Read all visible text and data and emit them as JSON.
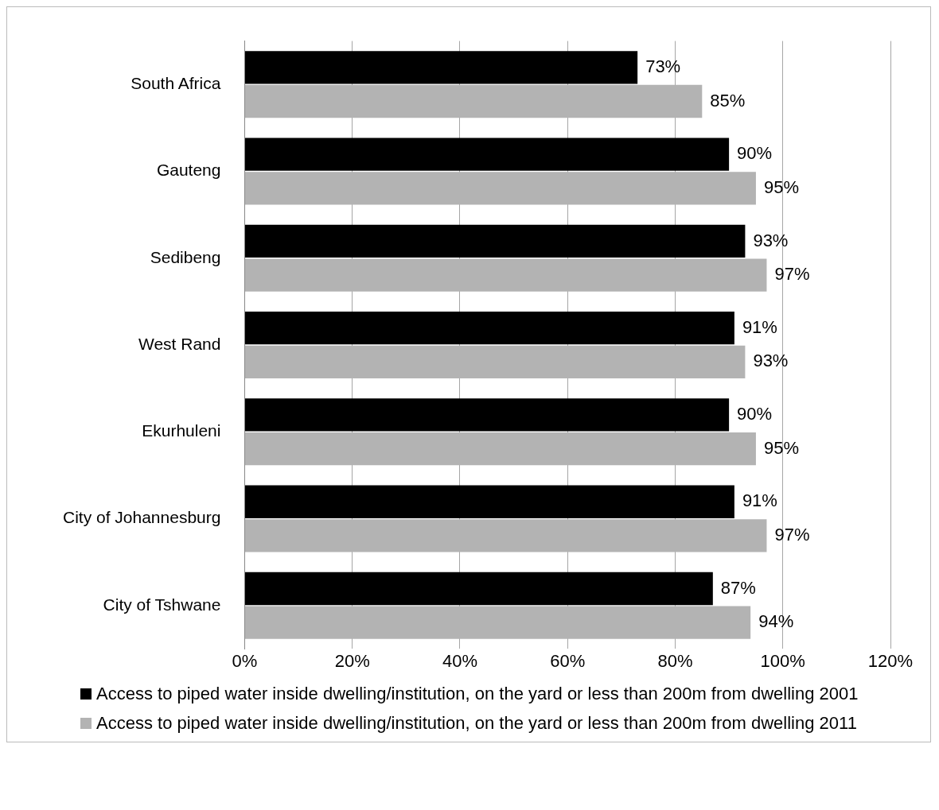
{
  "chart_data": {
    "type": "bar",
    "orientation": "horizontal",
    "categories": [
      "South Africa",
      "Gauteng",
      "Sedibeng",
      "West Rand",
      "Ekurhuleni",
      "City of Johannesburg",
      "City of Tshwane"
    ],
    "series": [
      {
        "name": "Access to piped water inside dwelling/institution, on the yard or less than 200m from dwelling 2001",
        "color": "#000000",
        "values": [
          73,
          90,
          93,
          91,
          90,
          91,
          87
        ],
        "value_labels": [
          "73%",
          "90%",
          "93%",
          "91%",
          "90%",
          "91%",
          "87%"
        ]
      },
      {
        "name": "Access to piped water inside dwelling/institution, on the yard or less than 200m from dwelling 2011",
        "color": "#b3b3b3",
        "values": [
          85,
          95,
          97,
          93,
          95,
          97,
          94
        ],
        "value_labels": [
          "85%",
          "95%",
          "97%",
          "93%",
          "95%",
          "97%",
          "94%"
        ]
      }
    ],
    "xlim": [
      0,
      120
    ],
    "xticks": [
      {
        "value": 0,
        "label": "0%"
      },
      {
        "value": 20,
        "label": "20%"
      },
      {
        "value": 40,
        "label": "40%"
      },
      {
        "value": 60,
        "label": "60%"
      },
      {
        "value": 80,
        "label": "80%"
      },
      {
        "value": 100,
        "label": "100%"
      },
      {
        "value": 120,
        "label": "120%"
      }
    ],
    "grid": "x",
    "legend": "bottom"
  }
}
